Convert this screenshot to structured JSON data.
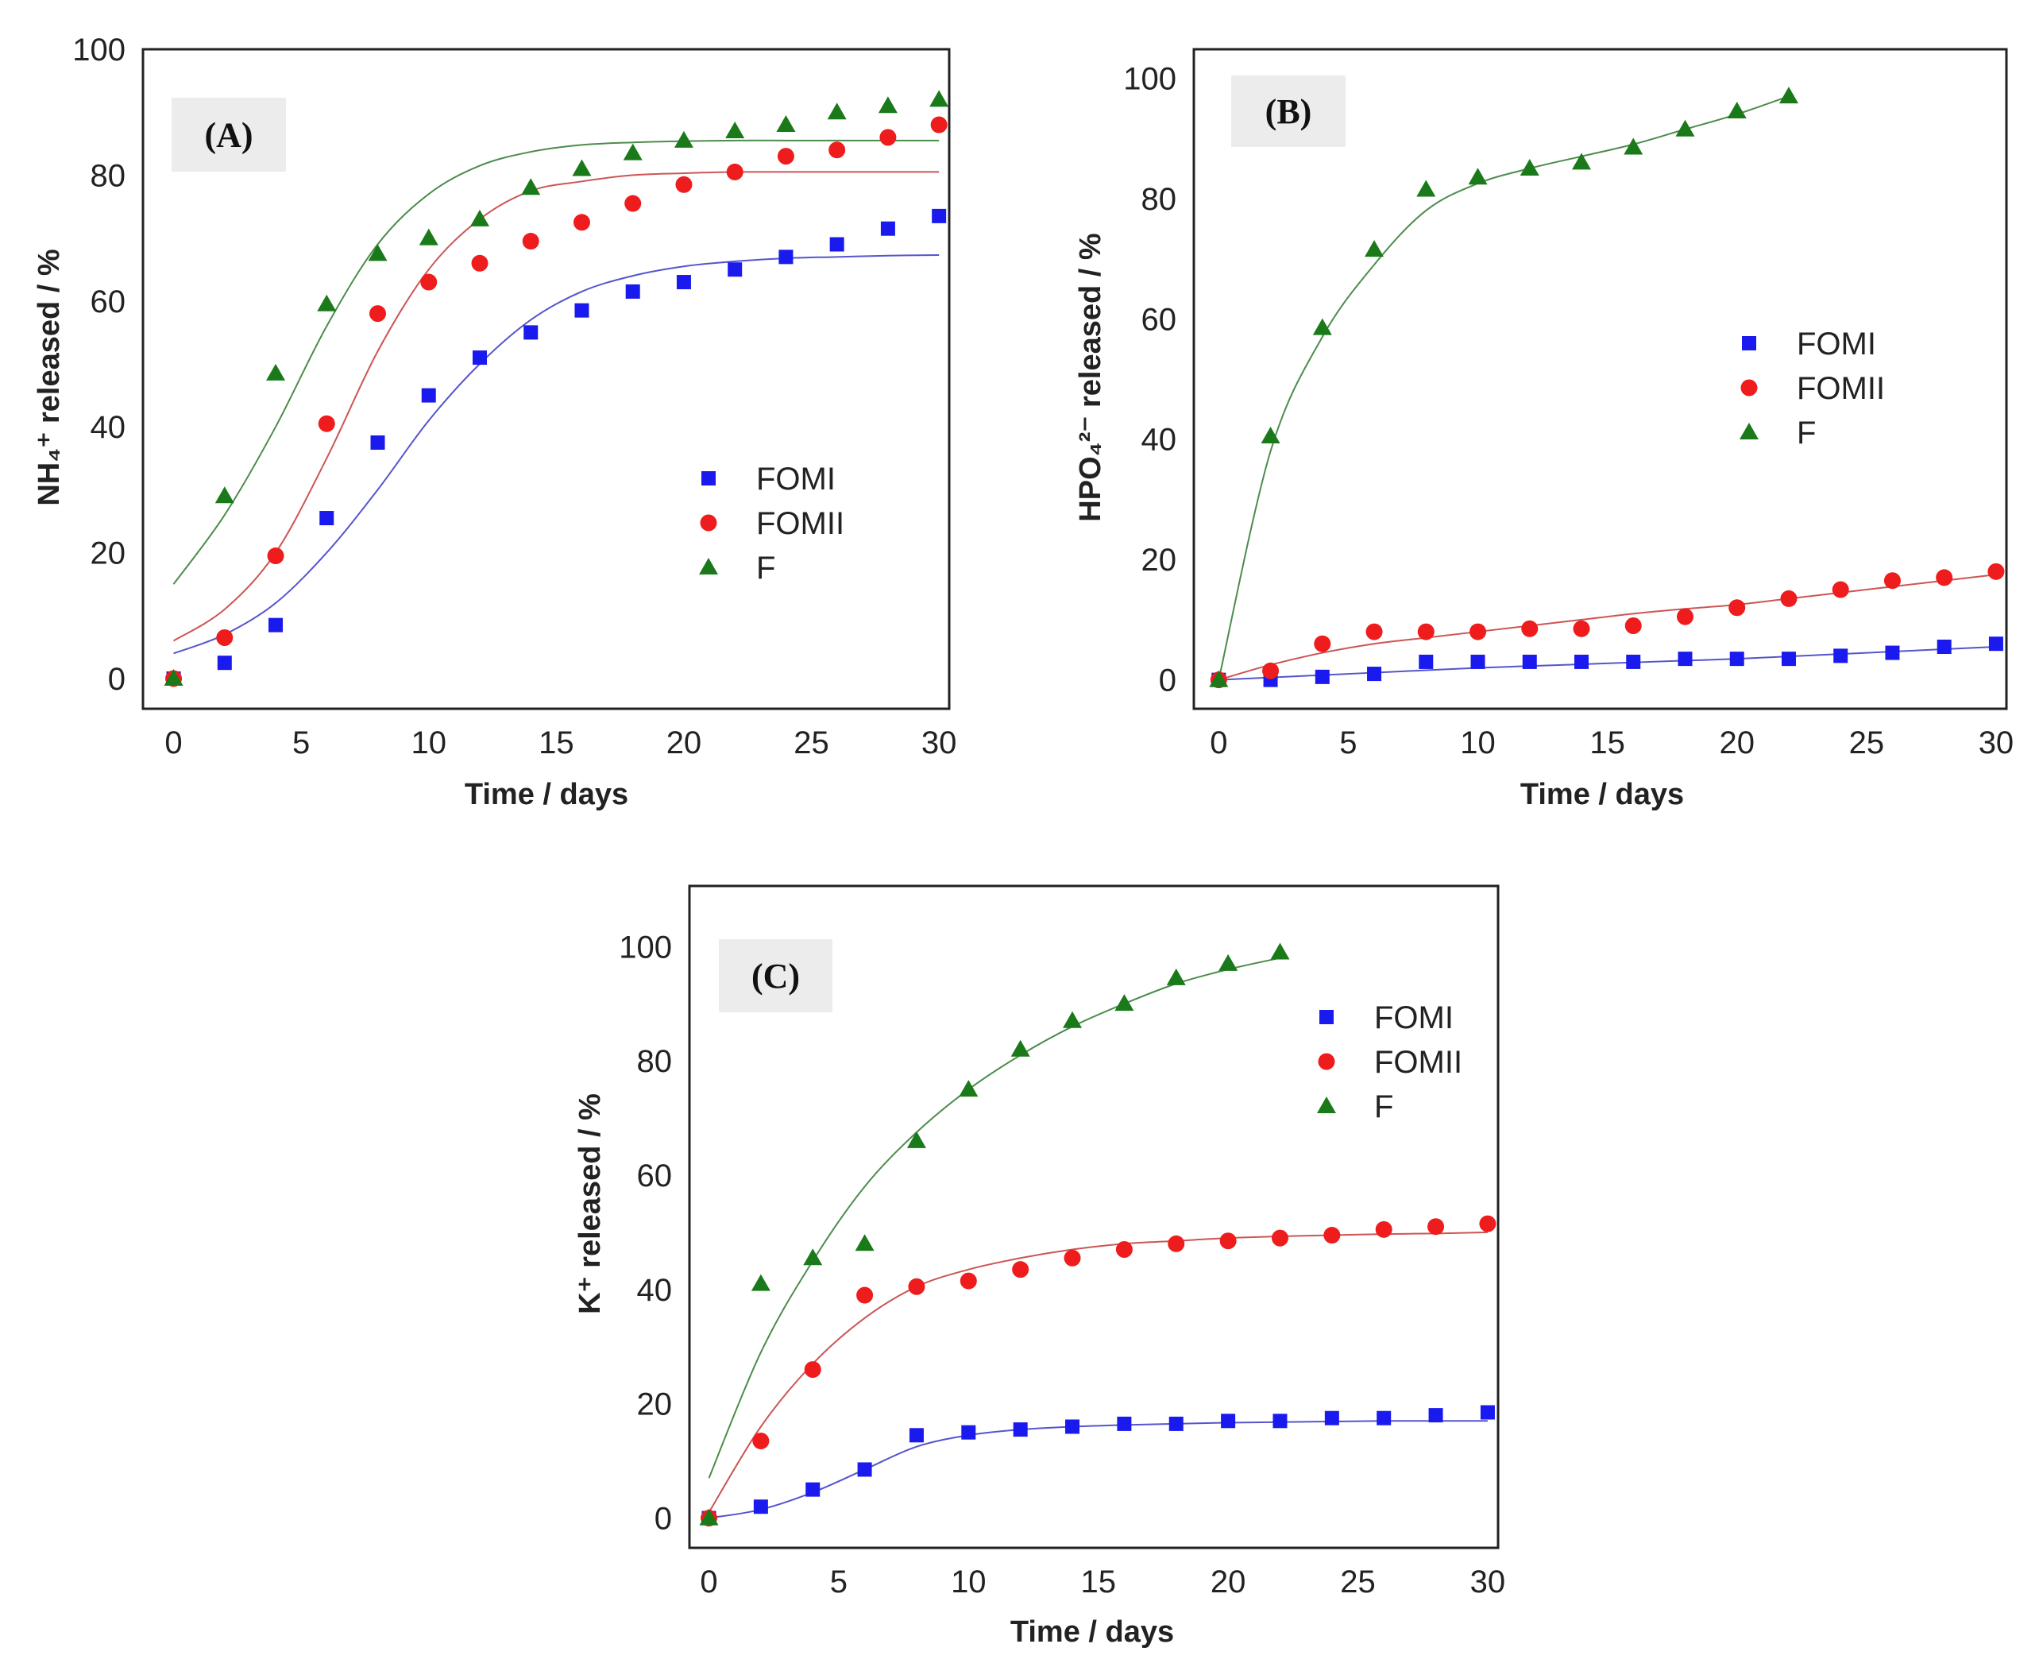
{
  "colors": {
    "FOMI": "#1a1aee",
    "FOMII": "#ee1c1c",
    "F": "#1a7a1a",
    "FOMI_fit": "#5555cc",
    "FOMII_fit": "#cc5555",
    "F_fit": "#4c8c4c",
    "label_box": "#ececec"
  },
  "chart_data": [
    {
      "type": "scatter",
      "panel_label": "(A)",
      "xlabel": "Time / days",
      "ylabel": "NH₄⁺ released / %",
      "xlim": [
        -1.2,
        30.4
      ],
      "ylim": [
        -4.8,
        100
      ],
      "xticks": [
        0,
        5,
        10,
        15,
        20,
        25,
        30
      ],
      "yticks": [
        0,
        20,
        40,
        60,
        80,
        100
      ],
      "legend": {
        "position": "center-right",
        "entries": [
          "FOMI",
          "FOMII",
          "F"
        ]
      },
      "series": [
        {
          "name": "FOMI",
          "marker": "square",
          "x": [
            0,
            2,
            4,
            6,
            8,
            10,
            12,
            14,
            16,
            18,
            20,
            22,
            24,
            26,
            28,
            30
          ],
          "y": [
            0,
            2.5,
            8.5,
            25.5,
            37.5,
            45,
            51,
            55,
            58.5,
            61.5,
            63,
            65,
            67,
            69,
            71.5,
            73.5
          ],
          "fit_x": [
            0,
            2,
            4,
            6,
            8,
            10,
            12,
            14,
            16,
            18,
            20,
            22,
            24,
            26,
            28,
            30
          ],
          "fit_y": [
            4,
            7,
            12,
            20,
            30,
            41,
            50,
            57,
            61.5,
            64,
            65.5,
            66.3,
            66.8,
            67,
            67.2,
            67.3
          ]
        },
        {
          "name": "FOMII",
          "marker": "circle",
          "x": [
            0,
            2,
            4,
            6,
            8,
            10,
            12,
            14,
            16,
            18,
            20,
            22,
            24,
            26,
            28,
            30
          ],
          "y": [
            0,
            6.5,
            19.5,
            40.5,
            58,
            63,
            66,
            69.5,
            72.5,
            75.5,
            78.5,
            80.5,
            83,
            84,
            86,
            88
          ],
          "fit_x": [
            0,
            2,
            4,
            6,
            8,
            10,
            12,
            14,
            16,
            18,
            20,
            22,
            24,
            26,
            28,
            30
          ],
          "fit_y": [
            6,
            11,
            20,
            35,
            52,
            65,
            73,
            77.5,
            79,
            80,
            80.3,
            80.5,
            80.5,
            80.5,
            80.5,
            80.5
          ]
        },
        {
          "name": "F",
          "marker": "triangle",
          "x": [
            0,
            2,
            4,
            6,
            8,
            10,
            12,
            14,
            16,
            18,
            20,
            22,
            24,
            26,
            28,
            30
          ],
          "y": [
            0,
            29,
            48.5,
            59.5,
            67.5,
            70,
            73,
            78,
            81,
            83.5,
            85.5,
            87,
            88,
            90,
            91,
            92
          ],
          "fit_x": [
            0,
            2,
            4,
            6,
            8,
            10,
            12,
            14,
            16,
            18,
            20,
            22,
            24,
            26,
            28,
            30
          ],
          "fit_y": [
            15,
            26,
            40,
            56,
            69,
            77,
            81.5,
            83.7,
            84.8,
            85.2,
            85.4,
            85.5,
            85.5,
            85.5,
            85.5,
            85.5
          ]
        }
      ]
    },
    {
      "type": "scatter",
      "panel_label": "(B)",
      "xlabel": "Time / days",
      "ylabel": "HPO₄²⁻ released / %",
      "xlim": [
        -0.96,
        30.4
      ],
      "ylim": [
        -4.8,
        104.8
      ],
      "xticks": [
        0,
        5,
        10,
        15,
        20,
        25,
        30
      ],
      "yticks": [
        0,
        20,
        40,
        60,
        80,
        100
      ],
      "legend": {
        "position": "center-right",
        "entries": [
          "FOMI",
          "FOMII",
          "F"
        ]
      },
      "series": [
        {
          "name": "FOMI",
          "marker": "square",
          "x": [
            0,
            2,
            4,
            6,
            8,
            10,
            12,
            14,
            16,
            18,
            20,
            22,
            24,
            26,
            28,
            30
          ],
          "y": [
            0,
            0,
            0.5,
            1,
            3,
            3,
            3,
            3,
            3,
            3.5,
            3.5,
            3.5,
            4,
            4.5,
            5.5,
            6
          ],
          "fit_x": [
            0,
            2,
            4,
            6,
            8,
            10,
            12,
            14,
            16,
            18,
            20,
            22,
            24,
            26,
            28,
            30
          ],
          "fit_y": [
            0,
            0.4,
            0.8,
            1.2,
            1.6,
            2,
            2.3,
            2.6,
            2.9,
            3.2,
            3.5,
            3.9,
            4.3,
            4.7,
            5.1,
            5.5
          ]
        },
        {
          "name": "FOMII",
          "marker": "circle",
          "x": [
            0,
            2,
            4,
            6,
            8,
            10,
            12,
            14,
            16,
            18,
            20,
            22,
            24,
            26,
            28,
            30
          ],
          "y": [
            0,
            1.5,
            6,
            8,
            8,
            8,
            8.5,
            8.5,
            9,
            10.5,
            12,
            13.5,
            15,
            16.5,
            17,
            18
          ],
          "fit_x": [
            0,
            2,
            4,
            6,
            8,
            10,
            12,
            14,
            16,
            18,
            20,
            22,
            24,
            26,
            28,
            30
          ],
          "fit_y": [
            0,
            2.5,
            4.5,
            6,
            7,
            8,
            9,
            10,
            11,
            11.8,
            12.5,
            13.5,
            14.5,
            15.5,
            16.5,
            17.5
          ]
        },
        {
          "name": "F",
          "marker": "triangle",
          "x": [
            0,
            2,
            4,
            6,
            8,
            10,
            12,
            14,
            16,
            18,
            20,
            22
          ],
          "y": [
            0,
            40.5,
            58.5,
            71.5,
            81.5,
            83.5,
            85,
            86,
            88.5,
            91.5,
            94.5,
            97
          ],
          "fit_x": [
            0,
            2,
            4,
            6,
            8,
            10,
            12,
            14,
            16,
            18,
            20,
            22
          ],
          "fit_y": [
            0,
            38,
            57,
            69,
            78,
            82.5,
            85,
            87,
            89,
            91.5,
            94,
            97
          ]
        }
      ]
    },
    {
      "type": "scatter",
      "panel_label": "(C)",
      "xlabel": "Time / days",
      "ylabel": "K⁺ released / %",
      "xlim": [
        -0.75,
        30.4
      ],
      "ylim": [
        -5.2,
        110.6
      ],
      "xticks": [
        0,
        5,
        10,
        15,
        20,
        25,
        30
      ],
      "yticks": [
        0,
        20,
        40,
        60,
        80,
        100
      ],
      "legend": {
        "position": "top-right",
        "entries": [
          "FOMI",
          "FOMII",
          "F"
        ]
      },
      "series": [
        {
          "name": "FOMI",
          "marker": "square",
          "x": [
            0,
            2,
            4,
            6,
            8,
            10,
            12,
            14,
            16,
            18,
            20,
            22,
            24,
            26,
            28,
            30
          ],
          "y": [
            0,
            2,
            5,
            8.5,
            14.5,
            15,
            15.5,
            16,
            16.5,
            16.5,
            17,
            17,
            17.5,
            17.5,
            18,
            18.5
          ],
          "fit_x": [
            0,
            2,
            4,
            6,
            8,
            10,
            12,
            14,
            16,
            18,
            20,
            22,
            24,
            26,
            28,
            30
          ],
          "fit_y": [
            0,
            1.5,
            4.5,
            8.5,
            12.5,
            14.5,
            15.5,
            16,
            16.3,
            16.5,
            16.7,
            16.8,
            16.9,
            17,
            17,
            17
          ]
        },
        {
          "name": "FOMII",
          "marker": "circle",
          "x": [
            0,
            2,
            4,
            6,
            8,
            10,
            12,
            14,
            16,
            18,
            20,
            22,
            24,
            26,
            28,
            30
          ],
          "y": [
            0,
            13.5,
            26,
            39,
            40.5,
            41.5,
            43.5,
            45.5,
            47,
            48,
            48.5,
            49,
            49.5,
            50.5,
            51,
            51.5
          ],
          "fit_x": [
            0,
            2,
            4,
            6,
            8,
            10,
            12,
            14,
            16,
            18,
            20,
            22,
            24,
            26,
            28,
            30
          ],
          "fit_y": [
            1,
            16,
            27,
            35,
            40.5,
            43.5,
            45.5,
            47,
            48,
            48.5,
            49,
            49.3,
            49.5,
            49.7,
            49.8,
            50
          ]
        },
        {
          "name": "F",
          "marker": "triangle",
          "x": [
            0,
            2,
            4,
            6,
            8,
            10,
            12,
            14,
            16,
            18,
            20,
            22
          ],
          "y": [
            0,
            41,
            45.5,
            48,
            66,
            75,
            82,
            87,
            90,
            94.5,
            97,
            99
          ],
          "fit_x": [
            0,
            2,
            4,
            6,
            8,
            10,
            12,
            14,
            16,
            18,
            20,
            22
          ],
          "fit_y": [
            7,
            29,
            45,
            58,
            67.5,
            75,
            81,
            86,
            90,
            93.5,
            96,
            98
          ]
        }
      ]
    }
  ]
}
